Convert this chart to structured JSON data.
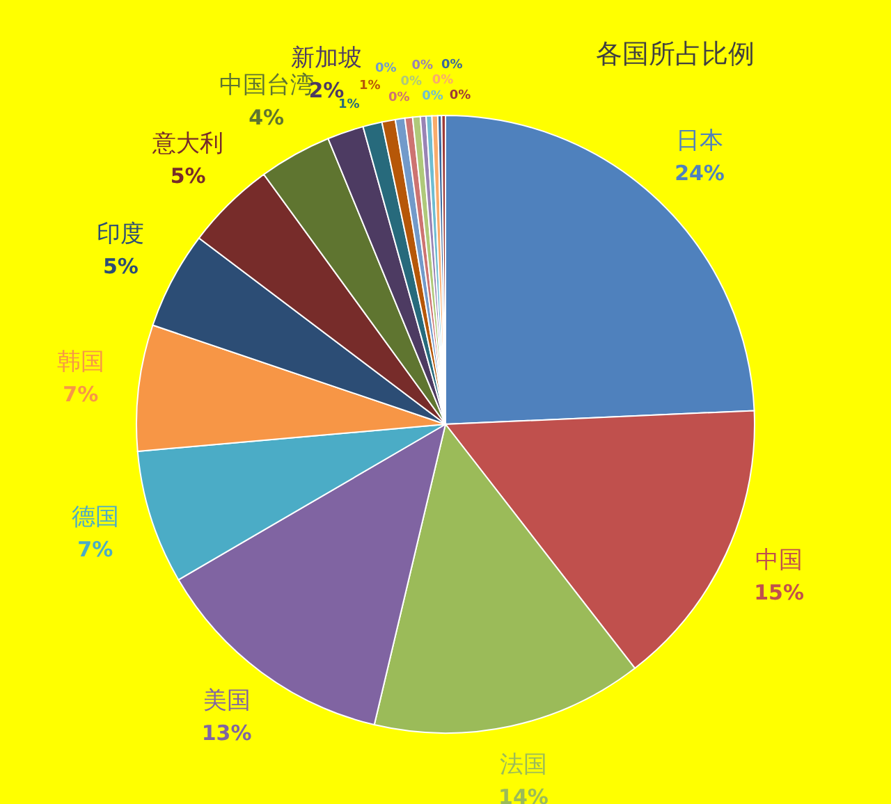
{
  "chart_data": {
    "type": "pie",
    "title": "各国所占比例",
    "categories": [
      "日本",
      "中国",
      "法国",
      "美国",
      "德国",
      "韩国",
      "印度",
      "意大利",
      "中国台湾",
      "新加坡",
      null,
      null,
      null,
      null,
      null,
      null,
      null,
      null,
      null,
      null
    ],
    "values": [
      24.3,
      15.2,
      14.2,
      12.9,
      7,
      6.6,
      5.1,
      4.7,
      3.8,
      1.9,
      1.0,
      0.7,
      0.5,
      0.4,
      0.4,
      0.3,
      0.3,
      0.3,
      0.2,
      0.2
    ],
    "colors": [
      "#4f81bd",
      "#c0504d",
      "#9bbb59",
      "#8064a2",
      "#4bacc6",
      "#f79646",
      "#2c4d75",
      "#772c2a",
      "#5f7530",
      "#4d3b62",
      "#276a7c",
      "#b65708",
      "#729aca",
      "#cd7371",
      "#afc97a",
      "#9983b5",
      "#6fbdd1",
      "#f9ab6b",
      "#3a679c",
      "#9d3b38"
    ],
    "value_labels": [
      "24%",
      "15%",
      "14%",
      "13%",
      "7%",
      "7%",
      "5%",
      "5%",
      "4%",
      "2%",
      "1%",
      "1%",
      "0%",
      "0%",
      "0%",
      "0%",
      "0%",
      "0%",
      "0%",
      "0%"
    ]
  }
}
